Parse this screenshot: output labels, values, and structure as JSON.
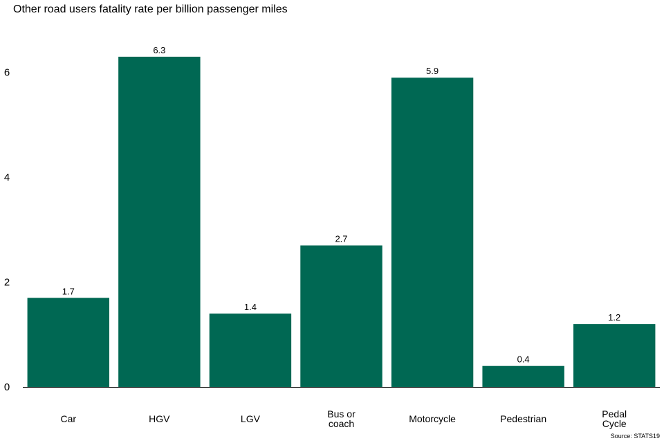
{
  "chart_data": {
    "type": "bar",
    "title": "Other road users fatality rate per billion passenger miles",
    "source": "Source: STATS19",
    "categories": [
      "Car",
      "HGV",
      "LGV",
      "Bus or coach",
      "Motorcycle",
      "Pedestrian",
      "Pedal Cycle"
    ],
    "category_lines": [
      [
        "Car"
      ],
      [
        "HGV"
      ],
      [
        "LGV"
      ],
      [
        "Bus or",
        "coach"
      ],
      [
        "Motorcycle"
      ],
      [
        "Pedestrian"
      ],
      [
        "Pedal",
        "Cycle"
      ]
    ],
    "values": [
      1.7,
      6.3,
      1.4,
      2.7,
      5.9,
      0.4,
      1.2
    ],
    "value_labels": [
      "1.7",
      "6.3",
      "1.4",
      "2.7",
      "5.9",
      "0.4",
      "1.2"
    ],
    "yticks": [
      0,
      2,
      4,
      6
    ],
    "ytick_labels": [
      "0",
      "2",
      "4",
      "6"
    ],
    "ylim": [
      0,
      6.55
    ],
    "bar_color": "#006853",
    "grid": false,
    "legend": "none"
  }
}
